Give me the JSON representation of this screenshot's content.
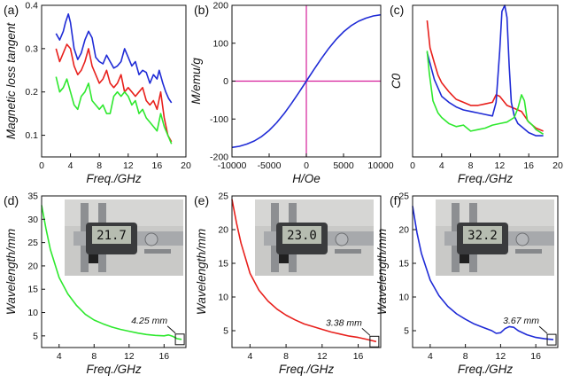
{
  "chart_data": [
    {
      "type": "line",
      "label": "(a)",
      "title": "",
      "xlabel": "Freq./GHz",
      "ylabel": "Magnetic loss tangent",
      "xlim": [
        0,
        20
      ],
      "ylim": [
        0.05,
        0.4
      ],
      "xticks": [
        0,
        4,
        8,
        12,
        16,
        20
      ],
      "yticks": [
        0.1,
        0.2,
        0.3,
        0.4
      ],
      "xtick_labels": [
        "0",
        "4",
        "8",
        "12",
        "16",
        "20"
      ],
      "ytick_labels": [
        "0.1",
        "0.2",
        "0.3",
        "0.4"
      ],
      "series": [
        {
          "name": "blue",
          "color": "#1f2bd6",
          "x": [
            2,
            2.5,
            3,
            3.3,
            3.7,
            4,
            4.5,
            5,
            5.5,
            6,
            6.5,
            7,
            7.5,
            8,
            8.5,
            9,
            9.5,
            10,
            10.5,
            11,
            11.5,
            12,
            12.5,
            13,
            13.5,
            14,
            14.5,
            15,
            15.5,
            16,
            16.3,
            16.8,
            17.2,
            17.6,
            18
          ],
          "y": [
            0.335,
            0.32,
            0.34,
            0.36,
            0.38,
            0.36,
            0.3,
            0.275,
            0.29,
            0.32,
            0.34,
            0.325,
            0.28,
            0.27,
            0.265,
            0.285,
            0.27,
            0.255,
            0.26,
            0.27,
            0.3,
            0.28,
            0.26,
            0.27,
            0.24,
            0.25,
            0.245,
            0.22,
            0.24,
            0.23,
            0.25,
            0.22,
            0.2,
            0.185,
            0.175
          ]
        },
        {
          "name": "red",
          "color": "#e8201c",
          "x": [
            2,
            2.5,
            3,
            3.5,
            4,
            4.5,
            5,
            5.5,
            6,
            6.5,
            7,
            7.5,
            8,
            8.5,
            9,
            9.5,
            10,
            10.5,
            11,
            11.5,
            12,
            12.5,
            13,
            13.5,
            14,
            14.5,
            15,
            15.5,
            16,
            16.5,
            17,
            17.5,
            18
          ],
          "y": [
            0.3,
            0.27,
            0.29,
            0.31,
            0.3,
            0.26,
            0.24,
            0.25,
            0.27,
            0.3,
            0.26,
            0.24,
            0.22,
            0.23,
            0.25,
            0.22,
            0.21,
            0.22,
            0.24,
            0.2,
            0.21,
            0.2,
            0.19,
            0.2,
            0.21,
            0.18,
            0.17,
            0.18,
            0.16,
            0.2,
            0.14,
            0.1,
            0.085
          ]
        },
        {
          "name": "green",
          "color": "#2ee82e",
          "x": [
            2,
            2.5,
            3,
            3.5,
            4,
            4.5,
            5,
            5.5,
            6,
            6.5,
            7,
            7.5,
            8,
            8.5,
            9,
            9.5,
            10,
            10.5,
            11,
            11.5,
            12,
            12.5,
            13,
            13.5,
            14,
            14.5,
            15,
            15.5,
            16,
            16.5,
            17,
            17.5,
            18
          ],
          "y": [
            0.235,
            0.2,
            0.21,
            0.23,
            0.2,
            0.17,
            0.16,
            0.19,
            0.2,
            0.22,
            0.18,
            0.17,
            0.16,
            0.17,
            0.15,
            0.15,
            0.19,
            0.2,
            0.19,
            0.2,
            0.19,
            0.17,
            0.18,
            0.15,
            0.16,
            0.14,
            0.13,
            0.12,
            0.11,
            0.15,
            0.12,
            0.1,
            0.08
          ]
        }
      ]
    },
    {
      "type": "line",
      "label": "(b)",
      "title": "",
      "xlabel": "H/Oe",
      "ylabel": "M/emu/g",
      "xlim": [
        -10000,
        10000
      ],
      "ylim": [
        -200,
        200
      ],
      "xticks": [
        -10000,
        -5000,
        0,
        5000,
        10000
      ],
      "yticks": [
        -200,
        -100,
        0,
        100,
        200
      ],
      "xtick_labels": [
        "-10000",
        "-5000",
        "0",
        "5000",
        "10000"
      ],
      "ytick_labels": [
        "-200",
        "-100",
        "0",
        "100",
        "200"
      ],
      "guide_lines": {
        "x": 0,
        "y": 0,
        "color": "#d61f9a"
      },
      "series": [
        {
          "name": "M-H loop",
          "color": "#1f2bd6",
          "x": [
            -10000,
            -9000,
            -8000,
            -7000,
            -6000,
            -5000,
            -4000,
            -3000,
            -2000,
            -1000,
            0,
            1000,
            2000,
            3000,
            4000,
            5000,
            6000,
            7000,
            8000,
            9000,
            10000
          ],
          "y": [
            -175,
            -172,
            -166,
            -158,
            -146,
            -130,
            -110,
            -86,
            -59,
            -30,
            0,
            30,
            59,
            86,
            110,
            130,
            146,
            158,
            166,
            172,
            175
          ]
        }
      ]
    },
    {
      "type": "line",
      "label": "(c)",
      "title": "",
      "xlabel": "Freq./GHz",
      "ylabel": "C0",
      "xlim": [
        0,
        20
      ],
      "ylim": [
        0,
        10
      ],
      "xticks": [
        0,
        4,
        8,
        12,
        16,
        20
      ],
      "yticks": [],
      "xtick_labels": [
        "0",
        "4",
        "8",
        "12",
        "16",
        "20"
      ],
      "ytick_labels": [],
      "series": [
        {
          "name": "red",
          "color": "#e8201c",
          "x": [
            2,
            2.4,
            3,
            3.5,
            4,
            5,
            6,
            7,
            8,
            9,
            10,
            11,
            11.5,
            12,
            13,
            14,
            15,
            16,
            17,
            18
          ],
          "y": [
            9.0,
            7.2,
            6.2,
            5.4,
            4.9,
            4.3,
            3.8,
            3.6,
            3.4,
            3.4,
            3.5,
            3.6,
            4.1,
            4.0,
            3.4,
            3.2,
            3.0,
            2.3,
            1.9,
            1.7
          ]
        },
        {
          "name": "blue",
          "color": "#1f2bd6",
          "x": [
            2,
            2.5,
            3,
            4,
            5,
            6,
            7,
            8,
            9,
            10,
            11,
            11.5,
            12,
            12.3,
            12.7,
            13,
            13.3,
            13.6,
            14,
            14.5,
            15,
            16,
            17,
            18
          ],
          "y": [
            6.9,
            6.0,
            5.1,
            4.0,
            3.6,
            3.3,
            3.1,
            3.0,
            2.9,
            2.8,
            2.7,
            3.6,
            7.0,
            9.6,
            10.0,
            9.2,
            6.0,
            3.6,
            2.7,
            2.2,
            2.0,
            1.6,
            1.4,
            1.4
          ]
        },
        {
          "name": "green",
          "color": "#2ee82e",
          "x": [
            2,
            2.3,
            2.8,
            3.5,
            4,
            5,
            6,
            7,
            8,
            9,
            10,
            11,
            12,
            13,
            14,
            14.5,
            15,
            15.4,
            15.8,
            16.5,
            17,
            18
          ],
          "y": [
            7.0,
            5.5,
            3.7,
            2.9,
            2.6,
            2.2,
            2.0,
            2.1,
            1.7,
            1.8,
            1.9,
            2.1,
            2.2,
            2.3,
            2.6,
            3.2,
            4.1,
            3.7,
            2.4,
            2.1,
            1.8,
            1.5
          ]
        }
      ]
    },
    {
      "type": "line",
      "label": "(d)",
      "title": "",
      "xlabel": "Freq./GHz",
      "ylabel": "Wavelength/mm",
      "xlim": [
        2,
        18.5
      ],
      "ylim": [
        2.5,
        35
      ],
      "xticks": [
        4,
        8,
        12,
        16
      ],
      "yticks": [
        5,
        10,
        15,
        20,
        25,
        30,
        35
      ],
      "xtick_labels": [
        "4",
        "8",
        "12",
        "16"
      ],
      "ytick_labels": [
        "5",
        "10",
        "15",
        "20",
        "25",
        "30",
        "35"
      ],
      "annotation": "4.25 mm",
      "annotation_point": [
        17.8,
        4.25
      ],
      "inset_reading": "21.7",
      "series": [
        {
          "name": "green",
          "color": "#2ee82e",
          "x": [
            2,
            2.5,
            3,
            4,
            5,
            6,
            7,
            8,
            9,
            10,
            11,
            12,
            13,
            14,
            15,
            16,
            16.5,
            17,
            17.5,
            18
          ],
          "y": [
            33,
            28,
            23.5,
            17.5,
            14,
            11.5,
            9.6,
            8.4,
            7.6,
            6.9,
            6.4,
            6.0,
            5.6,
            5.3,
            5.1,
            5.0,
            5.2,
            4.9,
            4.4,
            4.25
          ]
        }
      ]
    },
    {
      "type": "line",
      "label": "(e)",
      "title": "",
      "xlabel": "Freq./GHz",
      "ylabel": "Wavelength/mm",
      "xlim": [
        2,
        18.5
      ],
      "ylim": [
        2.5,
        25
      ],
      "xticks": [
        4,
        8,
        12,
        16
      ],
      "yticks": [
        5,
        10,
        15,
        20,
        25
      ],
      "xtick_labels": [
        "4",
        "8",
        "12",
        "16"
      ],
      "ytick_labels": [
        "5",
        "10",
        "15",
        "20",
        "25"
      ],
      "annotation": "3.38 mm",
      "annotation_point": [
        17.8,
        3.38
      ],
      "inset_reading": "23.0",
      "series": [
        {
          "name": "red",
          "color": "#e8201c",
          "x": [
            2,
            2.5,
            3,
            4,
            5,
            6,
            7,
            8,
            9,
            10,
            11,
            12,
            13,
            14,
            15,
            16,
            17,
            18
          ],
          "y": [
            24.5,
            21,
            18,
            13.5,
            11,
            9.4,
            8.2,
            7.3,
            6.6,
            6.0,
            5.6,
            5.2,
            4.8,
            4.5,
            4.2,
            4.0,
            3.7,
            3.38
          ]
        }
      ]
    },
    {
      "type": "line",
      "label": "(f)",
      "title": "",
      "xlabel": "Freq./GHz",
      "ylabel": "Wavelength/mm",
      "xlim": [
        2,
        18.5
      ],
      "ylim": [
        2.5,
        25
      ],
      "xticks": [
        4,
        8,
        12,
        16
      ],
      "yticks": [
        5,
        10,
        15,
        20,
        25
      ],
      "xtick_labels": [
        "4",
        "8",
        "12",
        "16"
      ],
      "ytick_labels": [
        "5",
        "10",
        "15",
        "20",
        "25"
      ],
      "annotation": "3.67 mm",
      "annotation_point": [
        17.8,
        3.67
      ],
      "inset_reading": "32.2",
      "series": [
        {
          "name": "blue",
          "color": "#1f2bd6",
          "x": [
            2,
            2.5,
            3,
            4,
            5,
            6,
            7,
            8,
            9,
            10,
            11,
            11.5,
            12,
            12.5,
            13,
            13.5,
            14,
            15,
            16,
            17,
            18
          ],
          "y": [
            23.5,
            19.5,
            16.5,
            12.5,
            10.2,
            8.6,
            7.5,
            6.7,
            6.0,
            5.5,
            5.0,
            4.6,
            4.7,
            5.3,
            5.6,
            5.5,
            5.0,
            4.4,
            4.0,
            3.8,
            3.67
          ]
        }
      ]
    }
  ]
}
